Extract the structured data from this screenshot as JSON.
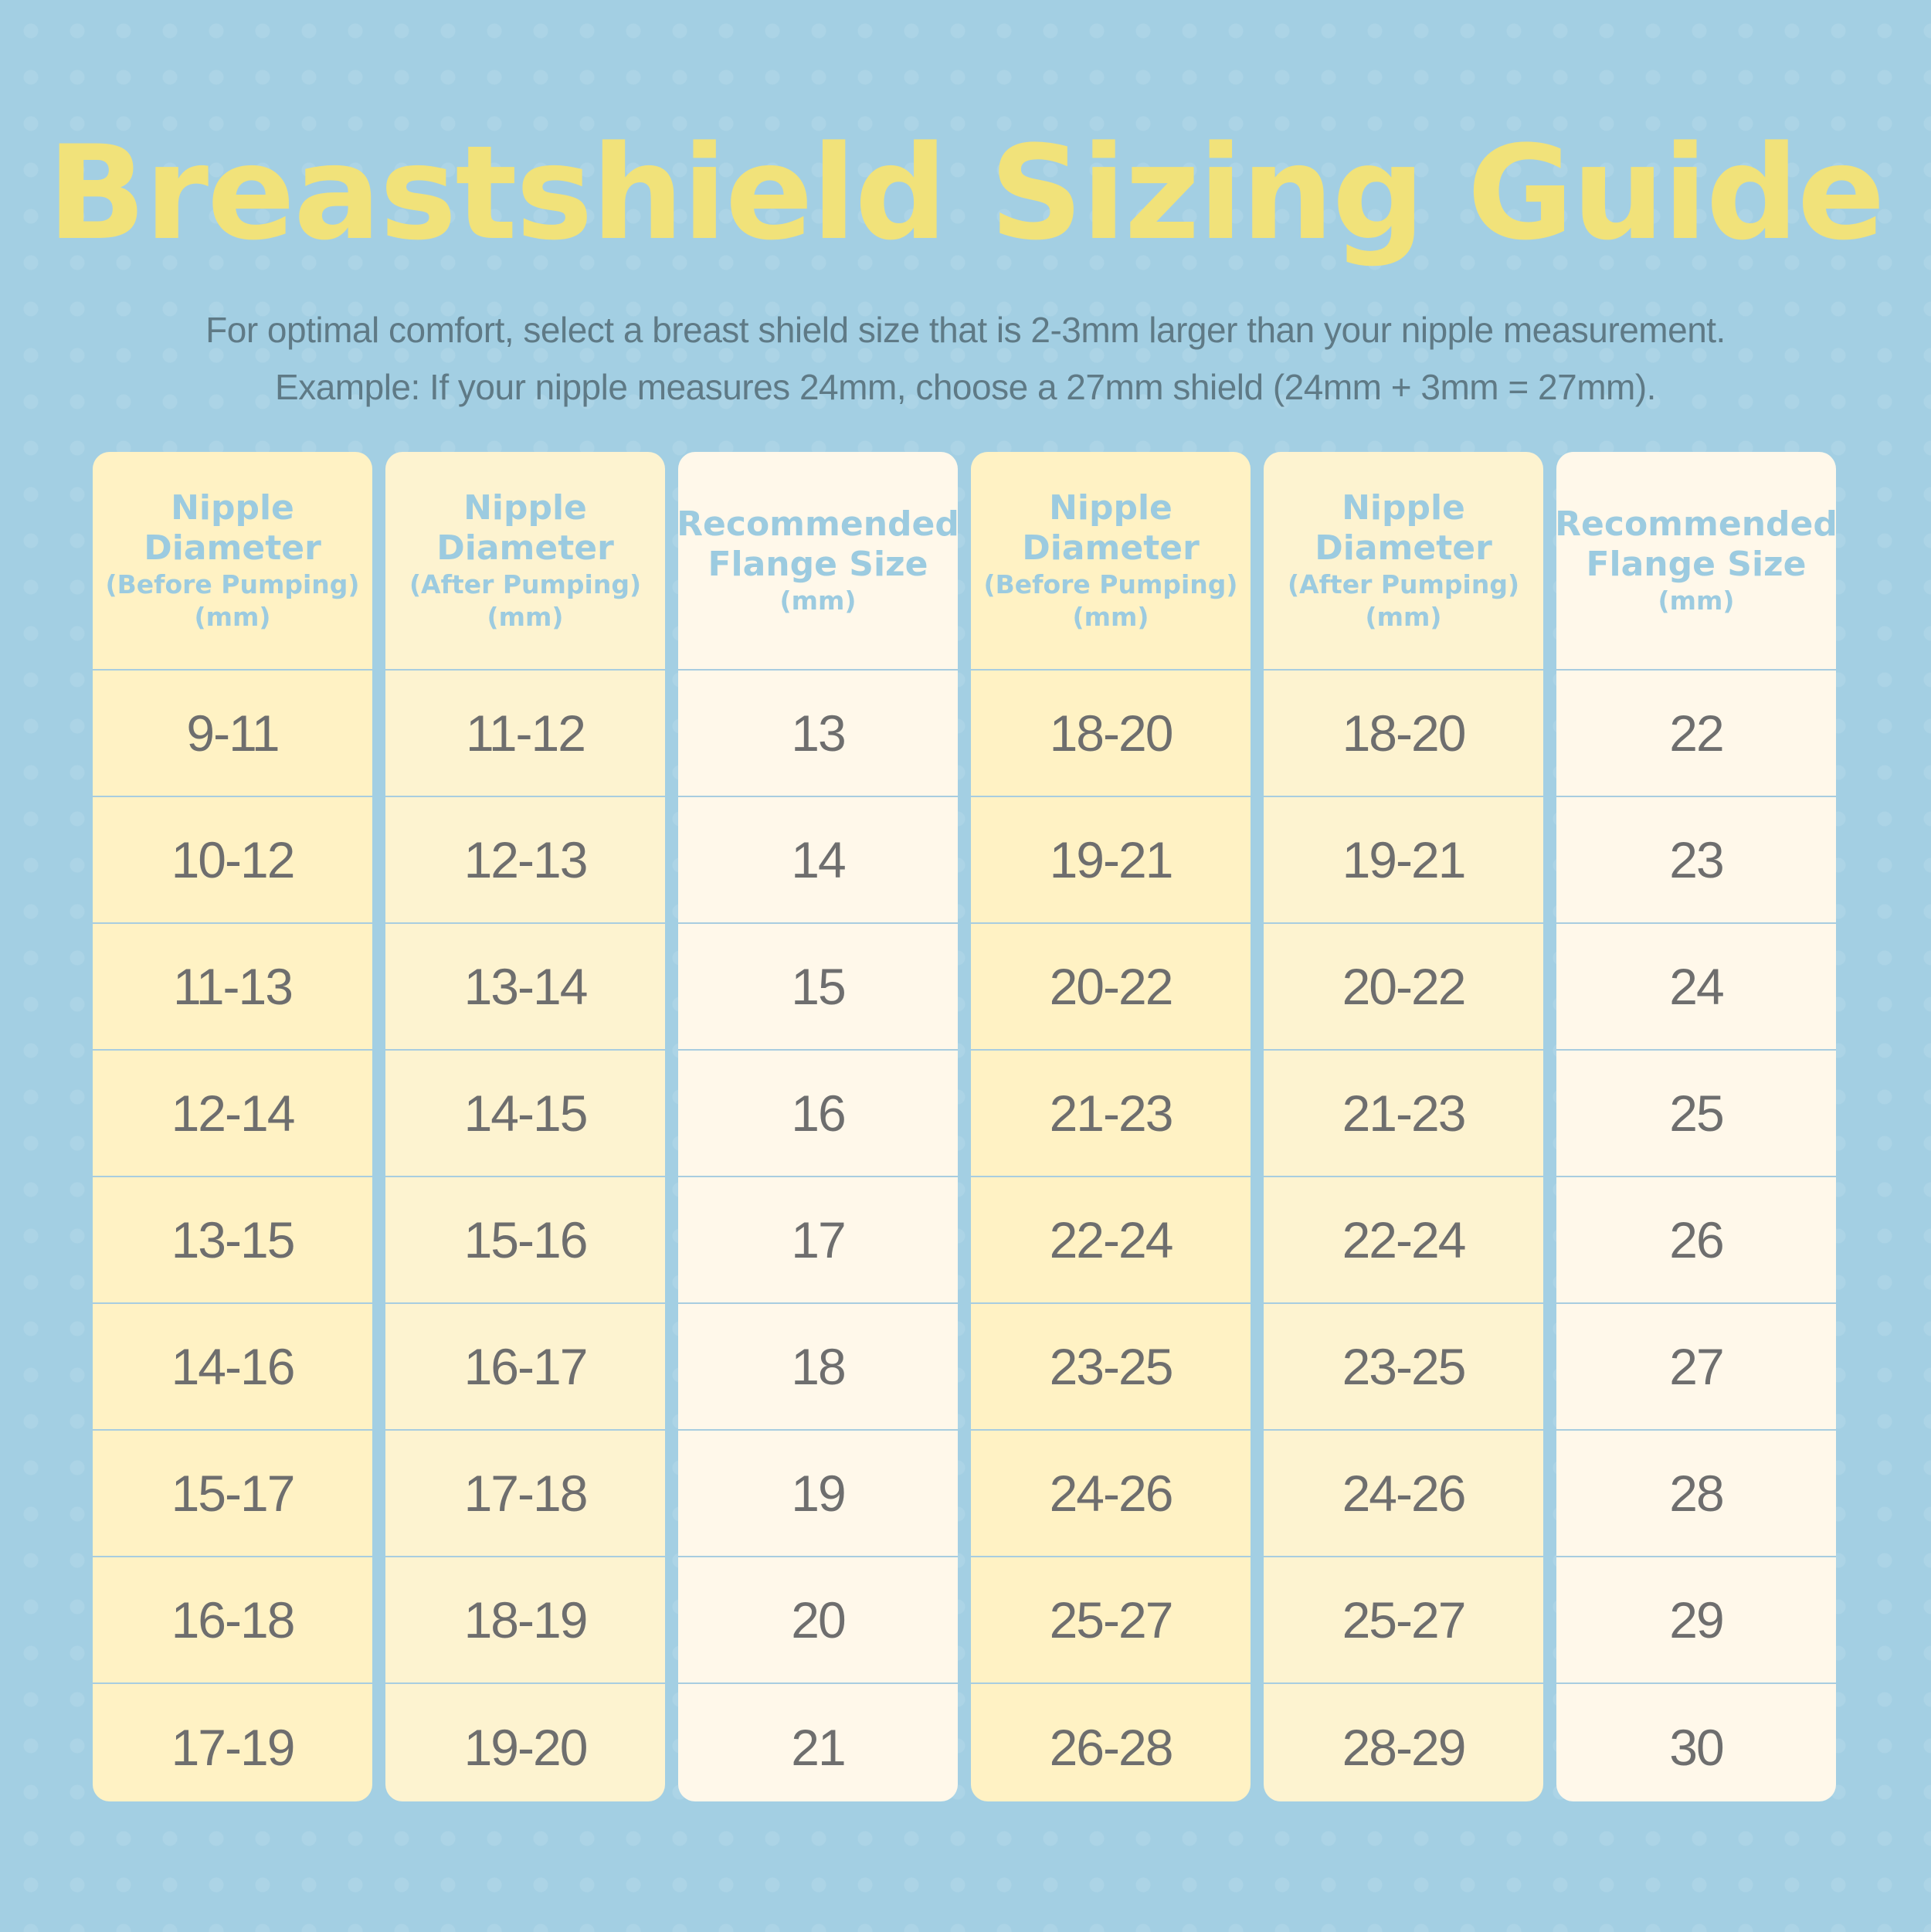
{
  "title": "Breastshield Sizing Guide",
  "subtitle": {
    "line1": "For optimal comfort, select a breast shield size that is 2-3mm larger than your nipple measurement.",
    "line2": "Example: If your nipple measures 24mm, choose a 27mm shield (24mm + 3mm = 27mm)."
  },
  "colors": {
    "background": "#a3cfe3",
    "title": "#f1e27a",
    "header_text": "#9ccbe0",
    "cell_text": "#6e6e6e",
    "col_before": "#fff2c4",
    "col_after": "#fdf3d0",
    "col_flange": "#fff8ea"
  },
  "columns": [
    {
      "header": {
        "line1": "Nipple",
        "line2": "Diameter",
        "sub1": "(Before Pumping)",
        "sub2": "(mm)"
      },
      "values": [
        "9-11",
        "10-12",
        "11-13",
        "12-14",
        "13-15",
        "14-16",
        "15-17",
        "16-18",
        "17-19"
      ]
    },
    {
      "header": {
        "line1": "Nipple",
        "line2": "Diameter",
        "sub1": "(After Pumping)",
        "sub2": "(mm)"
      },
      "values": [
        "11-12",
        "12-13",
        "13-14",
        "14-15",
        "15-16",
        "16-17",
        "17-18",
        "18-19",
        "19-20"
      ]
    },
    {
      "header": {
        "line1": "Recommended",
        "line2": "Flange Size",
        "sub1": "(mm)",
        "sub2": ""
      },
      "values": [
        "13",
        "14",
        "15",
        "16",
        "17",
        "18",
        "19",
        "20",
        "21"
      ]
    },
    {
      "header": {
        "line1": "Nipple",
        "line2": "Diameter",
        "sub1": "(Before Pumping)",
        "sub2": "(mm)"
      },
      "values": [
        "18-20",
        "19-21",
        "20-22",
        "21-23",
        "22-24",
        "23-25",
        "24-26",
        "25-27",
        "26-28"
      ]
    },
    {
      "header": {
        "line1": "Nipple",
        "line2": "Diameter",
        "sub1": "(After Pumping)",
        "sub2": "(mm)"
      },
      "values": [
        "18-20",
        "19-21",
        "20-22",
        "21-23",
        "22-24",
        "23-25",
        "24-26",
        "25-27",
        "28-29"
      ]
    },
    {
      "header": {
        "line1": "Recommended",
        "line2": "Flange Size",
        "sub1": "(mm)",
        "sub2": ""
      },
      "values": [
        "22",
        "23",
        "24",
        "25",
        "26",
        "27",
        "28",
        "29",
        "30"
      ]
    }
  ]
}
